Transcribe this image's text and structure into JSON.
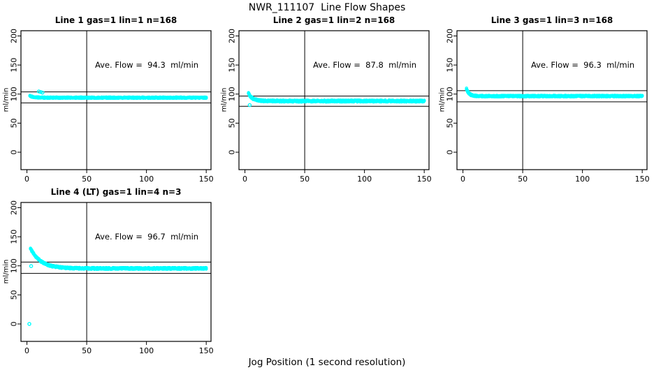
{
  "chart_data": {
    "type": "scatter",
    "title": "NWR_111107  Line Flow Shapes",
    "xlabel": "Jog Position (1 second resolution)",
    "ylabel": "ml/min",
    "xticks": [
      0,
      50,
      100,
      150
    ],
    "yticks": [
      0,
      50,
      100,
      150,
      200
    ],
    "xlim": [
      -5,
      154
    ],
    "ylim": [
      -30,
      209
    ],
    "vline_x": 50,
    "grid": false,
    "marker": "open-circle",
    "marker_color": "#00FFFF",
    "axis_color": "#000000",
    "annotation_xy": [
      100,
      150
    ],
    "panels": [
      {
        "title": "Line 1 gas=1 lin=1 n=168",
        "ave_flow": 94.3,
        "annotation": "Ave. Flow =  94.3  ml/min",
        "hlines": [
          103.7,
          84.9
        ],
        "series": {
          "x_start": 2.5,
          "x_end": 150,
          "start": 97,
          "plateau": 93.8,
          "tau": 3,
          "jitter": 1.1,
          "passes": 3
        },
        "outliers": [
          [
            10,
            104.5
          ],
          [
            11.5,
            103.5
          ],
          [
            13,
            102.5
          ]
        ],
        "seed": 11
      },
      {
        "title": "Line 2 gas=1 lin=2 n=168",
        "ave_flow": 87.8,
        "annotation": "Ave. Flow =  87.8  ml/min",
        "hlines": [
          96.6,
          79.0
        ],
        "series": {
          "x_start": 3,
          "x_end": 150,
          "start": 101,
          "plateau": 88,
          "tau": 3.5,
          "jitter": 1.6,
          "passes": 3
        },
        "outliers": [
          [
            4,
            81
          ]
        ],
        "seed": 22
      },
      {
        "title": "Line 3 gas=1 lin=3 n=168",
        "ave_flow": 96.3,
        "annotation": "Ave. Flow =  96.3  ml/min",
        "hlines": [
          105.9,
          86.7
        ],
        "series": {
          "x_start": 3,
          "x_end": 150,
          "start": 109,
          "plateau": 96.5,
          "tau": 2.2,
          "jitter": 1.3,
          "passes": 3
        },
        "outliers": [],
        "seed": 33
      },
      {
        "title": "Line 4 (LT) gas=1 lin=4 n=3",
        "ave_flow": 96.7,
        "annotation": "Ave. Flow =  96.7  ml/min",
        "hlines": [
          106.4,
          87.0
        ],
        "series": {
          "x_start": 3,
          "x_end": 150,
          "start": 130,
          "plateau": 95.5,
          "tau": 8.5,
          "jitter": 1.5,
          "passes": 3
        },
        "outliers": [
          [
            2,
            0
          ],
          [
            3.5,
            99.5
          ]
        ],
        "seed": 44
      }
    ]
  }
}
